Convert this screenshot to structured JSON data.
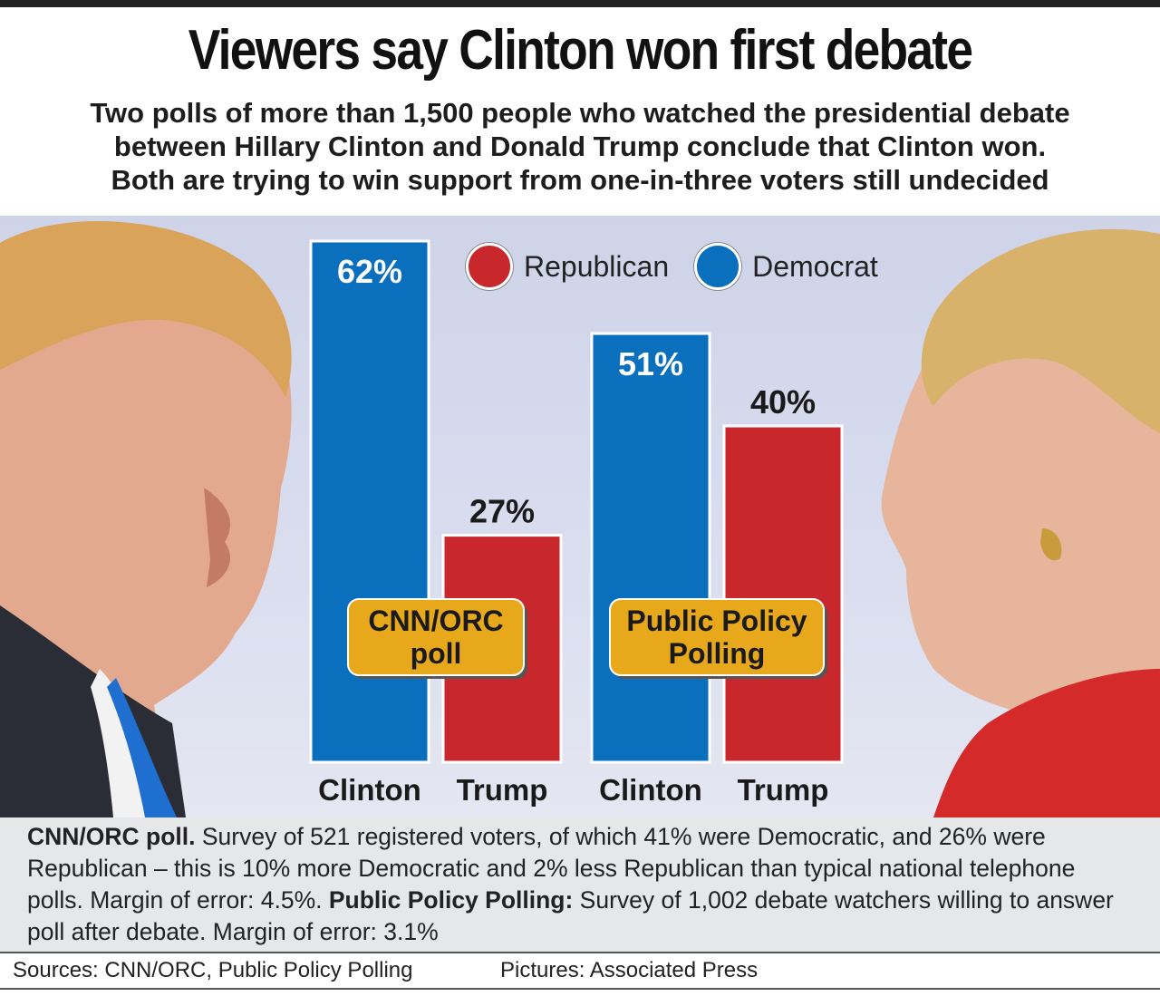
{
  "title": "Viewers say Clinton won first debate",
  "subtitle_lines": [
    "Two polls of more than 1,500 people who watched the presidential debate",
    "between Hillary Clinton and Donald Trump conclude that Clinton won.",
    "Both are trying to win support from one-in-three voters still undecided"
  ],
  "colors": {
    "democrat": "#0a6fbd",
    "republican": "#c8282b",
    "poll_label": "#e7a81b"
  },
  "legend": [
    {
      "label": "Republican",
      "color": "#c8282b"
    },
    {
      "label": "Democrat",
      "color": "#0a6fbd"
    }
  ],
  "chart_data": {
    "type": "bar",
    "unit": "%",
    "ylim": [
      0,
      62
    ],
    "grid": false,
    "legend_position": "top",
    "groups": [
      {
        "poll_label_lines": [
          "CNN/ORC",
          "poll"
        ],
        "bars": [
          {
            "category": "Clinton",
            "value": 62,
            "label": "62%",
            "party": "Democrat"
          },
          {
            "category": "Trump",
            "value": 27,
            "label": "27%",
            "party": "Republican"
          }
        ]
      },
      {
        "poll_label_lines": [
          "Public Policy",
          "Polling"
        ],
        "bars": [
          {
            "category": "Clinton",
            "value": 51,
            "label": "51%",
            "party": "Democrat"
          },
          {
            "category": "Trump",
            "value": 40,
            "label": "40%",
            "party": "Republican"
          }
        ]
      }
    ]
  },
  "footnote": {
    "cnn_heading": "CNN/ORC poll.",
    "cnn_text": " Survey of 521 registered voters, of which 41% were Democratic, and 26% were Republican – this is 10% more Democratic and 2% less Republican than typical national telephone polls. Margin of error: 4.5%. ",
    "ppp_heading": "Public Policy Polling:",
    "ppp_text": " Survey of 1,002 debate watchers willing to answer poll after debate. Margin of error: 3.1%"
  },
  "sources": "Sources: CNN/ORC, Public Policy Polling",
  "pictures": "Pictures: Associated Press"
}
